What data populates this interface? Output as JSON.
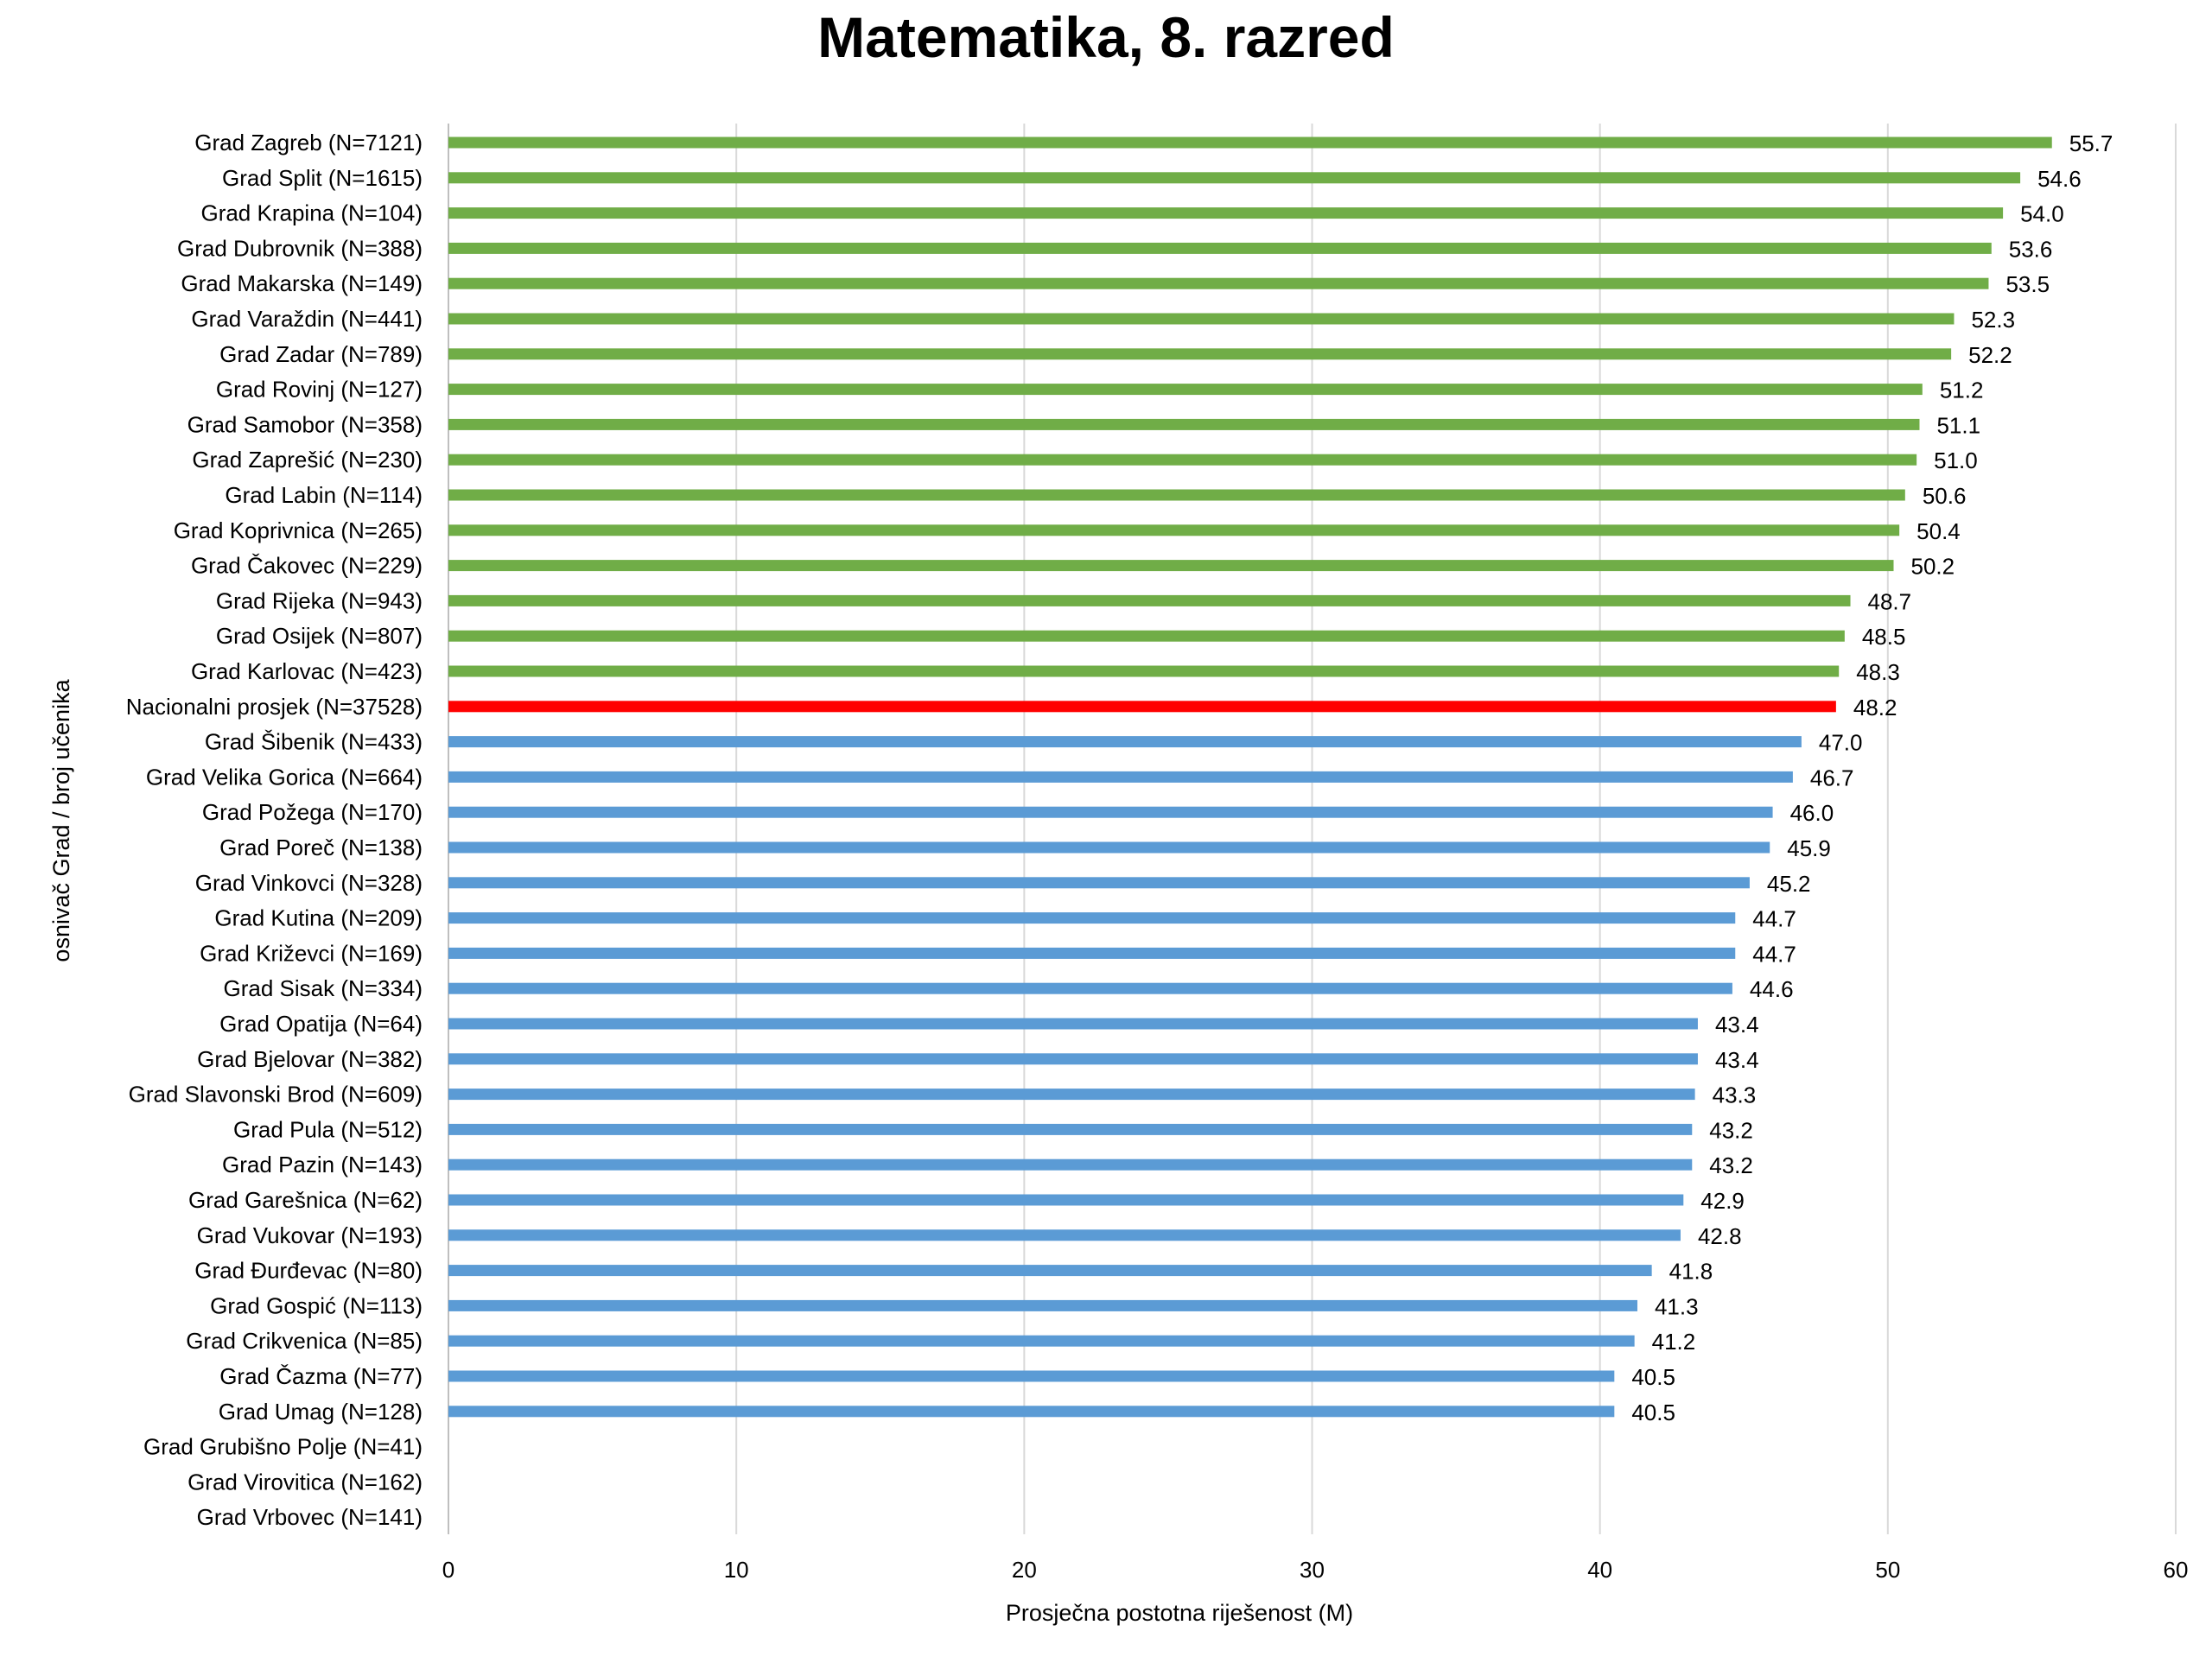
{
  "chart_data": {
    "type": "bar",
    "orientation": "horizontal",
    "title": "Matematika, 8. razred",
    "xlabel": "Prosječna postotna riješenost (M)",
    "ylabel": "osnivač Grad / broj učenika",
    "xlim": [
      0,
      60
    ],
    "xticks": [
      0,
      10,
      20,
      30,
      40,
      50,
      60
    ],
    "grid": "vertical",
    "legend": "none",
    "colors": {
      "above": "#70ad47",
      "national": "#ff0000",
      "below": "#5b9bd5"
    },
    "categories": [
      "Grad Zagreb (N=7121)",
      "Grad Split (N=1615)",
      "Grad Krapina (N=104)",
      "Grad Dubrovnik (N=388)",
      "Grad Makarska (N=149)",
      "Grad Varaždin (N=441)",
      "Grad Zadar (N=789)",
      "Grad Rovinj (N=127)",
      "Grad Samobor (N=358)",
      "Grad Zaprešić (N=230)",
      "Grad Labin (N=114)",
      "Grad Koprivnica (N=265)",
      "Grad Čakovec (N=229)",
      "Grad Rijeka (N=943)",
      "Grad Osijek (N=807)",
      "Grad Karlovac (N=423)",
      "Nacionalni prosjek (N=37528)",
      "Grad Šibenik (N=433)",
      "Grad Velika Gorica (N=664)",
      "Grad Požega (N=170)",
      "Grad Poreč (N=138)",
      "Grad Vinkovci (N=328)",
      "Grad Kutina (N=209)",
      "Grad Križevci (N=169)",
      "Grad Sisak (N=334)",
      "Grad Opatija (N=64)",
      "Grad Bjelovar (N=382)",
      "Grad Slavonski Brod (N=609)",
      "Grad Pula (N=512)",
      "Grad Pazin (N=143)",
      "Grad Garešnica (N=62)",
      "Grad Vukovar (N=193)",
      "Grad Đurđevac (N=80)",
      "Grad Gospić (N=113)",
      "Grad Crikvenica (N=85)",
      "Grad Čazma (N=77)",
      "Grad Umag (N=128)",
      "Grad Grubišno Polje (N=41)",
      "Grad Virovitica (N=162)",
      "Grad Vrbovec (N=141)"
    ],
    "values": [
      55.7,
      54.6,
      54.0,
      53.6,
      53.5,
      52.3,
      52.2,
      51.2,
      51.1,
      51.0,
      50.6,
      50.4,
      50.2,
      48.7,
      48.5,
      48.3,
      48.2,
      47.0,
      46.7,
      46.0,
      45.9,
      45.2,
      44.7,
      44.7,
      44.6,
      43.4,
      43.4,
      43.3,
      43.2,
      43.2,
      42.9,
      42.8,
      41.8,
      41.3,
      41.2,
      40.5,
      40.5,
      null,
      null,
      null
    ],
    "value_labels": [
      "55.7",
      "54.6",
      "54.0",
      "53.6",
      "53.5",
      "52.3",
      "52.2",
      "51.2",
      "51.1",
      "51.0",
      "50.6",
      "50.4",
      "50.2",
      "48.7",
      "48.5",
      "48.3",
      "48.2",
      "47.0",
      "46.7",
      "46.0",
      "45.9",
      "45.2",
      "44.7",
      "44.7",
      "44.6",
      "43.4",
      "43.4",
      "43.3",
      "43.2",
      "43.2",
      "42.9",
      "42.8",
      "41.8",
      "41.3",
      "41.2",
      "40.5",
      "40.5",
      "",
      "",
      ""
    ],
    "groups": [
      "above",
      "above",
      "above",
      "above",
      "above",
      "above",
      "above",
      "above",
      "above",
      "above",
      "above",
      "above",
      "above",
      "above",
      "above",
      "above",
      "national",
      "below",
      "below",
      "below",
      "below",
      "below",
      "below",
      "below",
      "below",
      "below",
      "below",
      "below",
      "below",
      "below",
      "below",
      "below",
      "below",
      "below",
      "below",
      "below",
      "below",
      "below",
      "below",
      "below"
    ]
  }
}
